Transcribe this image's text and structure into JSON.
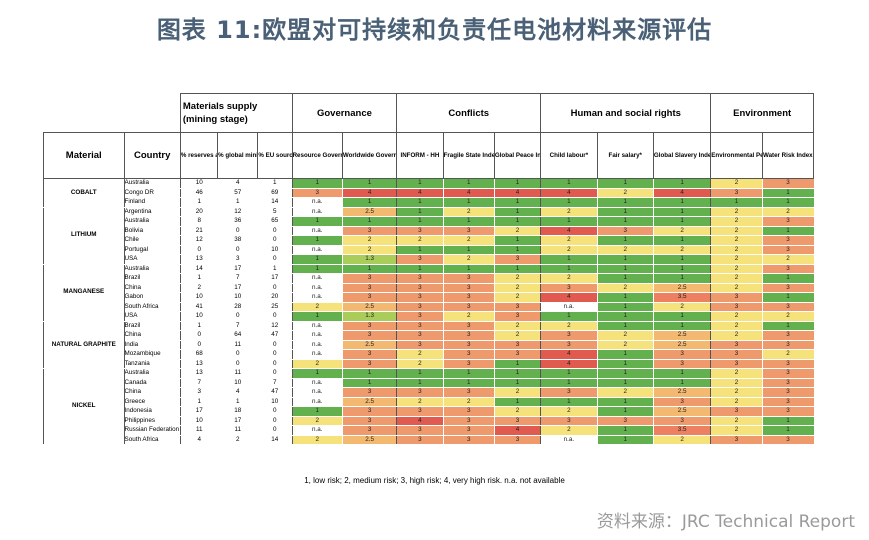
{
  "title": "图表 11:欧盟对可持续和负责任电池材料来源评估",
  "header": {
    "supply": "Materials supply    (mining stage)",
    "governance": "Governance",
    "conflicts": "Conflicts",
    "human": "Human and social rights",
    "environment": "Environment"
  },
  "columns": {
    "material": "Material",
    "country": "Country",
    "reserves": "% reserves and resources",
    "mining": "% global mining production",
    "eu": "% EU sourcing",
    "rgi": "Resource Governance Index",
    "wgi": "Worldwide Governance Indicators",
    "inform": "INFORM - HH",
    "fsi": "Fragile State Index",
    "gpi": "Global Peace Index",
    "child": "Child labour*",
    "fair": "Fair salary*",
    "slavery": "Global Slavery Index",
    "epi": "Environmental Performance Index",
    "water": "Water Risk Index"
  },
  "groups": [
    {
      "material": "COBALT",
      "rows": [
        {
          "country": "Australia",
          "vals": [
            "10",
            "4",
            "1"
          ],
          "risk": [
            "1",
            "1",
            "1",
            "1",
            "1",
            "1",
            "1",
            "1",
            "2",
            "3"
          ]
        },
        {
          "country": "Congo DR",
          "vals": [
            "46",
            "57",
            "69"
          ],
          "risk": [
            "3",
            "4",
            "4",
            "4",
            "4",
            "4",
            "2",
            "4",
            "3",
            "1"
          ]
        },
        {
          "country": "Finland",
          "vals": [
            "1",
            "1",
            "14"
          ],
          "risk": [
            "n.a.",
            "1",
            "1",
            "1",
            "1",
            "1",
            "1",
            "1",
            "1",
            "1"
          ]
        }
      ]
    },
    {
      "material": "LITHIUM",
      "rows": [
        {
          "country": "Argentina",
          "vals": [
            "20",
            "12",
            "5"
          ],
          "risk": [
            "n.a.",
            "2.5",
            "1",
            "2",
            "1",
            "2",
            "1",
            "1",
            "2",
            "2"
          ]
        },
        {
          "country": "Australia",
          "vals": [
            "8",
            "36",
            "65"
          ],
          "risk": [
            "1",
            "1",
            "1",
            "1",
            "1",
            "1",
            "1",
            "1",
            "2",
            "3"
          ]
        },
        {
          "country": "Bolivia",
          "vals": [
            "21",
            "0",
            "0"
          ],
          "risk": [
            "n.a.",
            "3",
            "3",
            "3",
            "2",
            "4",
            "3",
            "2",
            "2",
            "1"
          ]
        },
        {
          "country": "Chile",
          "vals": [
            "12",
            "38",
            "0"
          ],
          "risk": [
            "1",
            "2",
            "2",
            "2",
            "1",
            "2",
            "1",
            "1",
            "2",
            "3"
          ]
        },
        {
          "country": "Portugal",
          "vals": [
            "0",
            "0",
            "10"
          ],
          "risk": [
            "n.a.",
            "2",
            "1",
            "1",
            "1",
            "2",
            "2",
            "2",
            "2",
            "3"
          ]
        },
        {
          "country": "USA",
          "vals": [
            "13",
            "3",
            "0"
          ],
          "risk": [
            "1",
            "1.3",
            "3",
            "2",
            "3",
            "1",
            "1",
            "1",
            "2",
            "2"
          ]
        }
      ]
    },
    {
      "material": "MANGANESE",
      "rows": [
        {
          "country": "Australia",
          "vals": [
            "14",
            "17",
            "1"
          ],
          "risk": [
            "1",
            "1",
            "1",
            "1",
            "1",
            "1",
            "1",
            "1",
            "2",
            "3"
          ]
        },
        {
          "country": "Brazil",
          "vals": [
            "1",
            "7",
            "17"
          ],
          "risk": [
            "n.a.",
            "3",
            "3",
            "3",
            "2",
            "2",
            "1",
            "1",
            "2",
            "1"
          ]
        },
        {
          "country": "China",
          "vals": [
            "2",
            "17",
            "0"
          ],
          "risk": [
            "n.a.",
            "3",
            "3",
            "3",
            "2",
            "3",
            "2",
            "2.5",
            "2",
            "3"
          ]
        },
        {
          "country": "Gabon",
          "vals": [
            "10",
            "10",
            "20"
          ],
          "risk": [
            "n.a.",
            "3",
            "3",
            "3",
            "2",
            "4",
            "1",
            "3.5",
            "3",
            "1"
          ]
        },
        {
          "country": "South Africa",
          "vals": [
            "41",
            "28",
            "25"
          ],
          "risk": [
            "2",
            "2.5",
            "3",
            "3",
            "3",
            "n.a.",
            "1",
            "2",
            "3",
            "3"
          ]
        },
        {
          "country": "USA",
          "vals": [
            "10",
            "0",
            "0"
          ],
          "risk": [
            "1",
            "1.3",
            "3",
            "2",
            "3",
            "1",
            "1",
            "1",
            "2",
            "2"
          ]
        }
      ]
    },
    {
      "material": "NATURAL GRAPHITE",
      "rows": [
        {
          "country": "Brazil",
          "vals": [
            "1",
            "7",
            "12"
          ],
          "risk": [
            "n.a.",
            "3",
            "3",
            "3",
            "2",
            "2",
            "1",
            "1",
            "2",
            "1"
          ]
        },
        {
          "country": "China",
          "vals": [
            "0",
            "64",
            "47"
          ],
          "risk": [
            "n.a.",
            "3",
            "3",
            "3",
            "2",
            "3",
            "2",
            "2.5",
            "2",
            "3"
          ]
        },
        {
          "country": "India",
          "vals": [
            "0",
            "11",
            "0"
          ],
          "risk": [
            "n.a.",
            "2.5",
            "3",
            "3",
            "3",
            "3",
            "2",
            "2.5",
            "3",
            "3"
          ]
        },
        {
          "country": "Mozambique",
          "vals": [
            "68",
            "0",
            "0"
          ],
          "risk": [
            "n.a.",
            "3",
            "2",
            "3",
            "3",
            "4",
            "1",
            "3",
            "3",
            "2"
          ]
        },
        {
          "country": "Tanzania",
          "vals": [
            "13",
            "0",
            "0"
          ],
          "risk": [
            "2",
            "3",
            "2",
            "3",
            "1",
            "4",
            "1",
            "3",
            "3",
            "3"
          ]
        }
      ]
    },
    {
      "material": "NICKEL",
      "rows": [
        {
          "country": "Australia",
          "vals": [
            "13",
            "11",
            "0"
          ],
          "risk": [
            "1",
            "1",
            "1",
            "1",
            "1",
            "1",
            "1",
            "1",
            "2",
            "3"
          ]
        },
        {
          "country": "Canada",
          "vals": [
            "7",
            "10",
            "7"
          ],
          "risk": [
            "n.a.",
            "1",
            "1",
            "1",
            "1",
            "1",
            "1",
            "1",
            "2",
            "3"
          ]
        },
        {
          "country": "China",
          "vals": [
            "3",
            "4",
            "47"
          ],
          "risk": [
            "n.a.",
            "3",
            "3",
            "3",
            "2",
            "3",
            "2",
            "2.5",
            "2",
            "3"
          ]
        },
        {
          "country": "Greece",
          "vals": [
            "1",
            "1",
            "10"
          ],
          "risk": [
            "n.a.",
            "2.5",
            "2",
            "2",
            "1",
            "1",
            "1",
            "3",
            "2",
            "3"
          ]
        },
        {
          "country": "Indonesia",
          "vals": [
            "17",
            "18",
            "0"
          ],
          "risk": [
            "1",
            "3",
            "3",
            "3",
            "2",
            "2",
            "1",
            "2.5",
            "3",
            "3"
          ]
        },
        {
          "country": "Philippines",
          "vals": [
            "10",
            "17",
            "0"
          ],
          "risk": [
            "2",
            "3",
            "4",
            "3",
            "3",
            "3",
            "3",
            "3",
            "2",
            "1"
          ]
        },
        {
          "country": "Russian Federation",
          "vals": [
            "11",
            "11",
            "0"
          ],
          "risk": [
            "n.a.",
            "3",
            "3",
            "3",
            "4",
            "2",
            "1",
            "3.5",
            "2",
            "1"
          ]
        },
        {
          "country": "South Africa",
          "vals": [
            "4",
            "2",
            "14"
          ],
          "risk": [
            "2",
            "2.5",
            "3",
            "3",
            "3",
            "n.a.",
            "1",
            "2",
            "3",
            "3"
          ]
        }
      ]
    }
  ],
  "legend": "1, low risk; 2, medium risk; 3, high risk; 4, very high risk. n.a. not available",
  "source": "资料来源：JRC Technical Report",
  "risk_colors": {
    "1": "#63b04f",
    "1.3": "#a9cc5a",
    "2": "#f6e27a",
    "2.5": "#f3b970",
    "3": "#ef9a6c",
    "3.5": "#ec8060",
    "4": "#e05a4f",
    "n.a.": "#ffffff"
  }
}
